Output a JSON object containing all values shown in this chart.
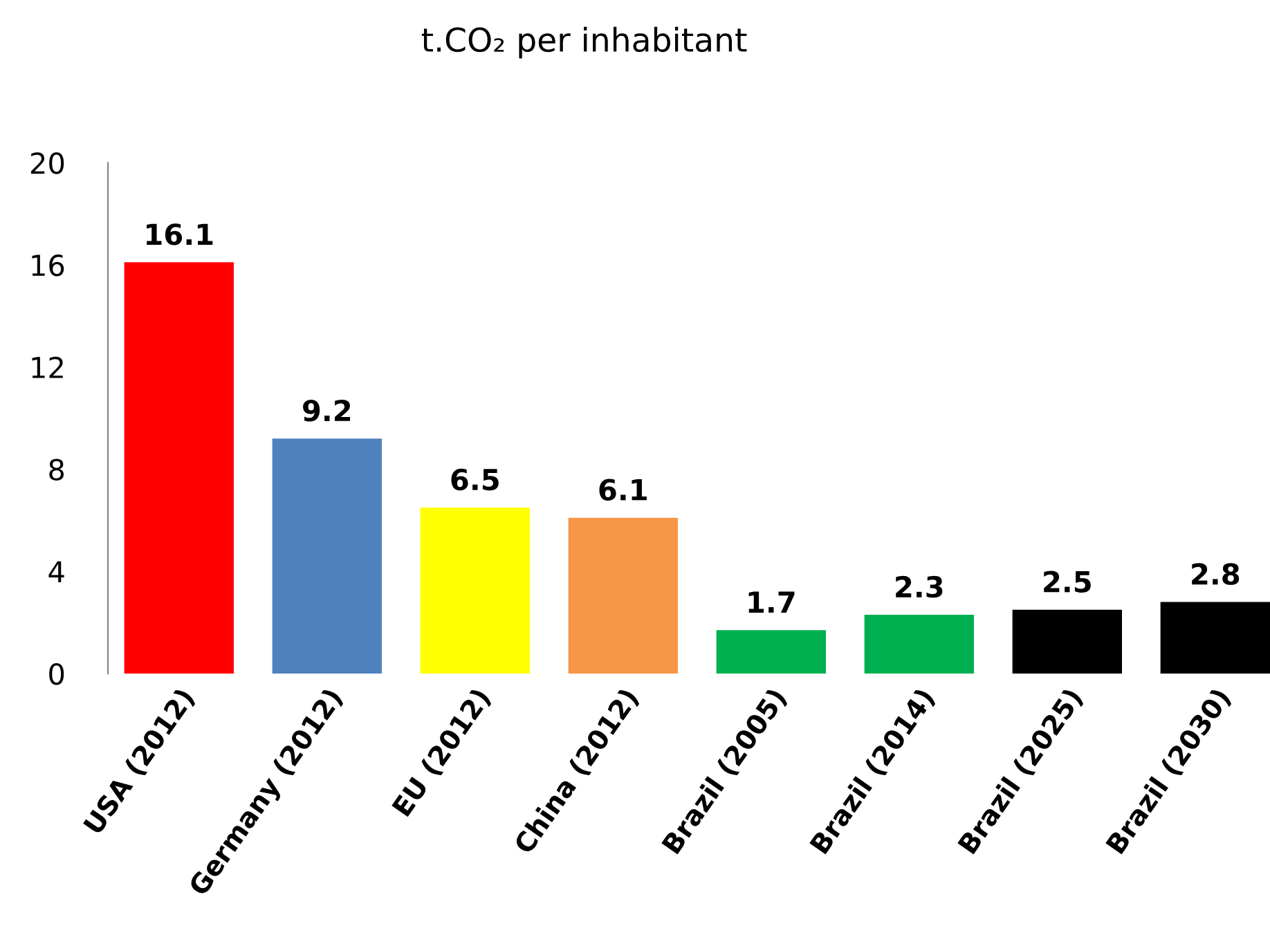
{
  "chart_data": {
    "type": "bar",
    "title": "t.CO₂ per inhabitant",
    "categories": [
      "USA (2012)",
      "Germany (2012)",
      "EU (2012)",
      "China (2012)",
      "Brazil (2005)",
      "Brazil (2014)",
      "Brazil (2025)",
      "Brazil (2030)"
    ],
    "values": [
      16.1,
      9.2,
      6.5,
      6.1,
      1.7,
      2.3,
      2.5,
      2.8
    ],
    "colors": [
      "#ff0000",
      "#4f81bd",
      "#ffff00",
      "#f79646",
      "#00b050",
      "#00b050",
      "#000000",
      "#000000"
    ],
    "ylim": [
      0,
      20
    ],
    "yticks": [
      0,
      4,
      8,
      12,
      16,
      20
    ],
    "data_labels": true,
    "grid": false,
    "legend": false
  }
}
